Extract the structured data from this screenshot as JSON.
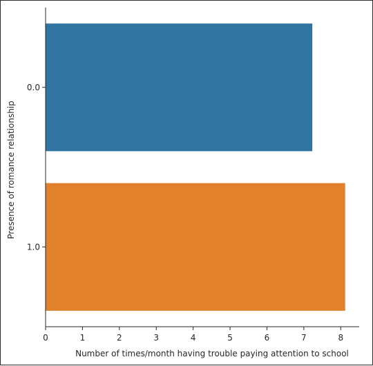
{
  "chart_data": {
    "type": "bar",
    "orientation": "horizontal",
    "categories": [
      "0.0",
      "1.0"
    ],
    "values": [
      7.23,
      8.12
    ],
    "colors": [
      "#3274a1",
      "#e1812c"
    ],
    "xlabel": "Number of times/month having trouble paying attention to school",
    "ylabel": "Presence of romance relationship",
    "xlim": [
      0,
      8.5
    ],
    "xticks": [
      "0",
      "1",
      "2",
      "3",
      "4",
      "5",
      "6",
      "7",
      "8"
    ],
    "grid": false,
    "legend": "none"
  }
}
